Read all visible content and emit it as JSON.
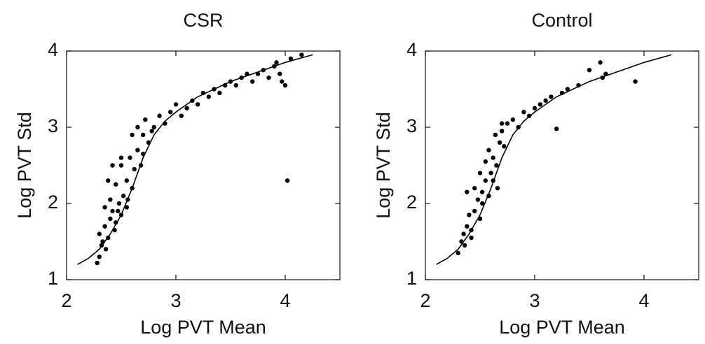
{
  "chart_data": [
    {
      "type": "scatter",
      "title": "CSR",
      "x_label": "Log PVT Mean",
      "y_label": "Log PVT Std",
      "xlim": [
        2,
        4.5
      ],
      "ylim": [
        1,
        4
      ],
      "xticks": [
        2,
        3,
        4
      ],
      "yticks": [
        1,
        2,
        3,
        4
      ],
      "color": "#000000",
      "x": [
        2.28,
        2.3,
        2.32,
        2.3,
        2.35,
        2.38,
        2.4,
        2.42,
        2.35,
        2.45,
        2.48,
        2.5,
        2.4,
        2.52,
        2.55,
        2.45,
        2.38,
        2.5,
        2.55,
        2.6,
        2.62,
        2.58,
        2.65,
        2.68,
        2.7,
        2.6,
        2.65,
        2.72,
        2.75,
        2.8,
        2.85,
        2.9,
        2.95,
        3.0,
        3.05,
        3.1,
        3.15,
        3.2,
        3.25,
        3.3,
        3.35,
        3.4,
        3.45,
        3.5,
        3.55,
        3.6,
        3.65,
        3.7,
        3.75,
        3.8,
        3.85,
        3.9,
        3.95,
        3.97,
        4.0,
        3.92,
        4.05,
        4.15,
        4.02,
        2.33,
        2.36,
        2.44,
        2.47,
        2.56,
        2.7,
        2.78,
        2.5,
        2.42
      ],
      "values": [
        1.22,
        1.3,
        1.45,
        1.6,
        1.7,
        1.55,
        1.8,
        1.9,
        1.95,
        1.75,
        2.0,
        1.85,
        2.05,
        2.1,
        1.95,
        2.25,
        2.3,
        2.5,
        2.3,
        2.2,
        2.45,
        2.6,
        2.7,
        2.5,
        2.9,
        2.9,
        3.0,
        3.1,
        2.8,
        3.0,
        3.15,
        3.05,
        3.2,
        3.3,
        3.15,
        3.25,
        3.35,
        3.3,
        3.45,
        3.4,
        3.5,
        3.45,
        3.55,
        3.6,
        3.55,
        3.65,
        3.7,
        3.6,
        3.7,
        3.75,
        3.65,
        3.8,
        3.7,
        3.6,
        3.55,
        3.85,
        3.9,
        3.95,
        2.3,
        1.5,
        1.4,
        1.65,
        1.9,
        2.05,
        2.65,
        2.95,
        2.6,
        2.5
      ],
      "fit": {
        "x": [
          2.1,
          2.2,
          2.3,
          2.4,
          2.5,
          2.6,
          2.7,
          2.8,
          2.9,
          3.0,
          3.2,
          3.5,
          3.8,
          4.0,
          4.25
        ],
        "values": [
          1.2,
          1.28,
          1.4,
          1.6,
          1.85,
          2.2,
          2.6,
          2.9,
          3.08,
          3.2,
          3.4,
          3.6,
          3.75,
          3.85,
          3.95
        ]
      }
    },
    {
      "type": "scatter",
      "title": "Control",
      "x_label": "Log PVT Mean",
      "y_label": "Log PVT Std",
      "xlim": [
        2,
        4.5
      ],
      "ylim": [
        1,
        4
      ],
      "xticks": [
        2,
        3,
        4
      ],
      "yticks": [
        1,
        2,
        3,
        4
      ],
      "color": "#000000",
      "x": [
        2.3,
        2.33,
        2.35,
        2.38,
        2.4,
        2.42,
        2.45,
        2.48,
        2.5,
        2.52,
        2.55,
        2.58,
        2.6,
        2.62,
        2.65,
        2.55,
        2.5,
        2.45,
        2.38,
        2.68,
        2.7,
        2.72,
        2.75,
        2.8,
        2.85,
        2.9,
        2.95,
        3.0,
        3.05,
        3.1,
        3.15,
        3.2,
        3.25,
        3.3,
        3.4,
        3.5,
        3.6,
        3.65,
        3.62,
        3.92,
        2.62,
        2.66,
        2.42,
        2.36,
        2.58,
        2.64,
        2.7,
        2.52
      ],
      "values": [
        1.35,
        1.5,
        1.6,
        1.7,
        1.85,
        1.65,
        1.9,
        2.05,
        1.8,
        2.15,
        2.3,
        2.1,
        2.4,
        2.6,
        2.5,
        2.55,
        2.4,
        2.2,
        2.15,
        2.8,
        2.95,
        2.75,
        3.05,
        3.1,
        3.0,
        3.2,
        3.15,
        3.25,
        3.3,
        3.35,
        3.4,
        2.98,
        3.45,
        3.5,
        3.55,
        3.75,
        3.85,
        3.7,
        3.65,
        3.6,
        2.3,
        2.2,
        1.55,
        1.45,
        2.7,
        2.9,
        3.05,
        2.0
      ],
      "fit": {
        "x": [
          2.1,
          2.2,
          2.3,
          2.4,
          2.5,
          2.6,
          2.7,
          2.8,
          2.9,
          3.0,
          3.2,
          3.5,
          3.8,
          4.0,
          4.25
        ],
        "values": [
          1.2,
          1.28,
          1.4,
          1.6,
          1.85,
          2.2,
          2.6,
          2.9,
          3.08,
          3.2,
          3.4,
          3.6,
          3.75,
          3.85,
          3.95
        ]
      }
    }
  ]
}
